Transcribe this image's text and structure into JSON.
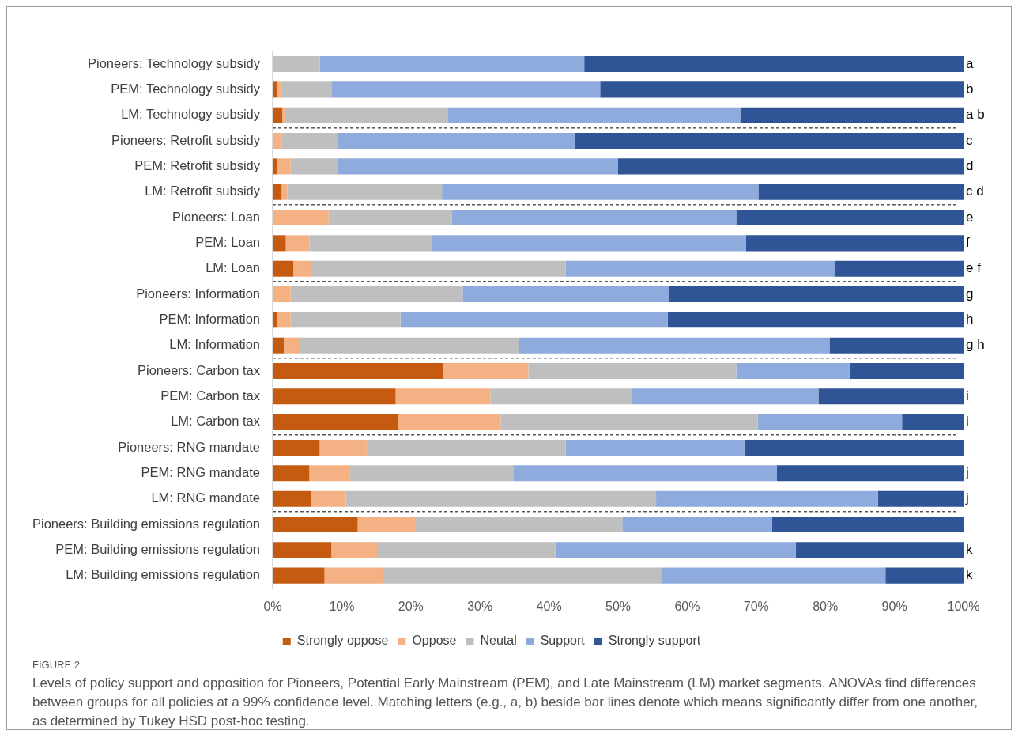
{
  "chart_data": {
    "type": "bar",
    "orientation": "horizontal",
    "stacked": true,
    "categories": [
      "Pioneers: Technology subsidy",
      "PEM: Technology subsidy",
      "LM: Technology subsidy",
      "Pioneers: Retrofit subsidy",
      "PEM: Retrofit subsidy",
      "LM: Retrofit subsidy",
      "Pioneers: Loan",
      "PEM: Loan",
      "LM: Loan",
      "Pioneers: Information",
      "PEM: Information",
      "LM: Information",
      "Pioneers: Carbon tax",
      "PEM: Carbon tax",
      "LM: Carbon tax",
      "Pioneers: RNG mandate",
      "PEM: RNG mandate",
      "LM: RNG mandate",
      "Pioneers: Building emissions regulation",
      "PEM: Building emissions regulation",
      "LM: Building emissions regulation"
    ],
    "series": [
      {
        "name": "Strongly oppose",
        "color": "#c55a11",
        "values": [
          0,
          0.7,
          1.4,
          0,
          0.7,
          1.3,
          0,
          1.9,
          3.0,
          0,
          0.7,
          1.6,
          24.6,
          17.8,
          18.1,
          6.8,
          5.3,
          5.5,
          12.3,
          8.5,
          7.5
        ]
      },
      {
        "name": "Oppose",
        "color": "#f4b183",
        "values": [
          0,
          0.6,
          0.3,
          1.3,
          1.9,
          0.8,
          8.1,
          3.4,
          2.5,
          2.6,
          1.9,
          2.3,
          12.4,
          13.7,
          14.9,
          6.8,
          5.9,
          5.1,
          8.3,
          6.6,
          8.5
        ]
      },
      {
        "name": "Neutal",
        "color": "#bfbfbf",
        "values": [
          6.8,
          7.2,
          23.7,
          8.2,
          6.7,
          22.4,
          17.8,
          17.8,
          36.9,
          24.9,
          15.9,
          31.7,
          30.1,
          20.5,
          37.2,
          28.8,
          23.7,
          44.9,
          30.0,
          25.8,
          40.2
        ]
      },
      {
        "name": "Support",
        "color": "#8faadc",
        "values": [
          38.3,
          38.9,
          42.4,
          34.2,
          40.7,
          45.8,
          41.2,
          45.4,
          39.0,
          29.9,
          38.7,
          45.0,
          16.4,
          27.0,
          20.9,
          25.9,
          38.1,
          32.1,
          21.7,
          34.8,
          32.5
        ]
      },
      {
        "name": "Strongly support",
        "color": "#2f5597",
        "values": [
          54.9,
          52.6,
          32.2,
          56.3,
          50.0,
          29.7,
          32.9,
          31.5,
          18.6,
          42.6,
          42.8,
          19.4,
          16.5,
          21.0,
          8.9,
          31.7,
          27.0,
          12.4,
          27.7,
          24.3,
          11.3
        ],
        "value_labels": [
          "a",
          "b",
          "a b",
          "c",
          "d",
          "c d",
          "e",
          "f",
          "e f",
          "g",
          "h",
          "g h",
          null,
          "i",
          "i",
          null,
          "j",
          "j",
          null,
          "k",
          "k"
        ]
      }
    ],
    "xlim": [
      0,
      100
    ],
    "xticks": [
      {
        "value": 0,
        "label": "0%"
      },
      {
        "value": 10,
        "label": "10%"
      },
      {
        "value": 20,
        "label": "20%"
      },
      {
        "value": 30,
        "label": "30%"
      },
      {
        "value": 40,
        "label": "40%"
      },
      {
        "value": 50,
        "label": "50%"
      },
      {
        "value": 60,
        "label": "60%"
      },
      {
        "value": 70,
        "label": "70%"
      },
      {
        "value": 80,
        "label": "80%"
      },
      {
        "value": 90,
        "label": "90%"
      },
      {
        "value": 100,
        "label": "100%"
      }
    ],
    "grid": false,
    "legend": "bottom",
    "annotations": [
      "FIGURE 2",
      "Levels of policy support and opposition for Pioneers, Potential Early Mainstream (PEM), and Late Mainstream (LM) market segments. ANOVAs find differences between groups for all policies at a 99% confidence level. Matching letters (e.g., a, b) beside bar lines denote which means significantly differ from one another, as determined by Tukey HSD post-hoc testing."
    ]
  }
}
